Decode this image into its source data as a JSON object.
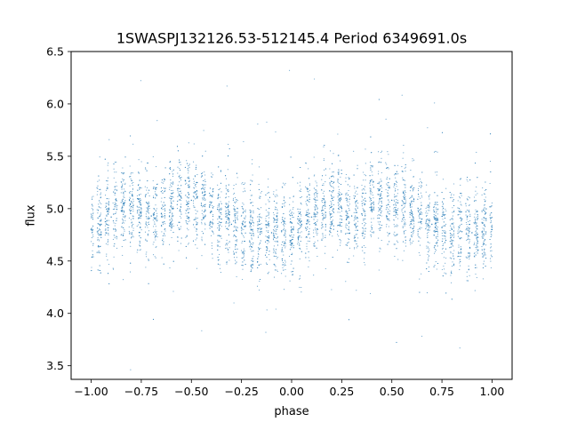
{
  "chart_data": {
    "type": "scatter",
    "title": "1SWASPJ132126.53-512145.4 Period 6349691.0s",
    "xlabel": "phase",
    "ylabel": "flux",
    "xlim": [
      -1.1,
      1.1
    ],
    "ylim": [
      3.37,
      6.5
    ],
    "xticks": [
      -1.0,
      -0.75,
      -0.5,
      -0.25,
      0.0,
      0.25,
      0.5,
      0.75,
      1.0
    ],
    "xtick_labels": [
      "−1.00",
      "−0.75",
      "−0.50",
      "−0.25",
      "0.00",
      "0.25",
      "0.50",
      "0.75",
      "1.00"
    ],
    "yticks": [
      3.5,
      4.0,
      4.5,
      5.0,
      5.5,
      6.0,
      6.5
    ],
    "ytick_labels": [
      "3.5",
      "4.0",
      "4.5",
      "5.0",
      "5.5",
      "6.0",
      "6.5"
    ],
    "grid": false,
    "legend": "none",
    "marker_color": "#1f77b4",
    "series": [
      {
        "x": [
          -1.0,
          -0.95,
          -0.9,
          -0.85,
          -0.8,
          -0.75,
          -0.7,
          -0.65,
          -0.6,
          -0.55,
          -0.5,
          -0.45,
          -0.4,
          -0.35,
          -0.3,
          -0.25,
          -0.2,
          -0.15,
          -0.1,
          -0.05,
          0.0,
          0.05,
          0.1,
          0.15,
          0.2,
          0.25,
          0.3,
          0.35,
          0.4,
          0.45,
          0.5,
          0.55,
          0.6,
          0.65,
          0.7,
          0.75,
          0.8,
          0.85,
          0.9,
          0.95,
          1.0
        ],
        "y": [
          4.8,
          4.85,
          4.92,
          4.98,
          5.02,
          5.0,
          4.93,
          4.95,
          5.05,
          5.1,
          5.08,
          5.03,
          4.97,
          4.9,
          4.85,
          4.82,
          4.8,
          4.78,
          4.77,
          4.78,
          4.8,
          4.85,
          4.92,
          4.98,
          5.02,
          5.0,
          4.93,
          4.95,
          5.05,
          5.1,
          5.08,
          5.03,
          4.97,
          4.9,
          4.85,
          4.82,
          4.8,
          4.78,
          4.77,
          4.78,
          4.8
        ]
      }
    ]
  }
}
